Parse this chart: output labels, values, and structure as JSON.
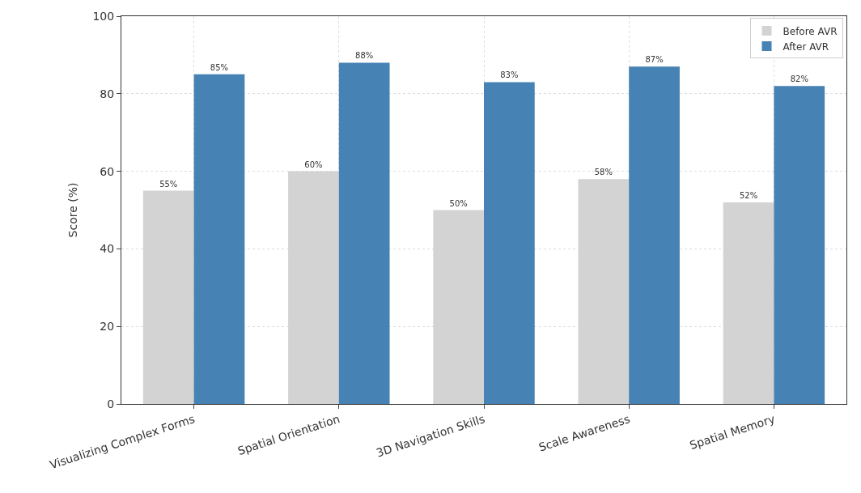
{
  "chart_data": {
    "type": "bar",
    "ylabel": "Score (%)",
    "categories": [
      "Visualizing Complex Forms",
      "Spatial Orientation",
      "3D Navigation Skills",
      "Scale Awareness",
      "Spatial Memory"
    ],
    "series": [
      {
        "name": "Before AVR",
        "color": "#d3d3d3",
        "values": [
          55,
          60,
          50,
          58,
          52
        ],
        "value_labels": [
          "55%",
          "60%",
          "50%",
          "58%",
          "52%"
        ]
      },
      {
        "name": "After AVR",
        "color": "#4682b4",
        "values": [
          85,
          88,
          83,
          87,
          82
        ],
        "value_labels": [
          "85%",
          "88%",
          "83%",
          "87%",
          "82%"
        ]
      }
    ],
    "ylim": [
      0,
      100
    ],
    "yticks": [
      0,
      20,
      40,
      60,
      80,
      100
    ],
    "grid": true,
    "legend": "top right"
  }
}
